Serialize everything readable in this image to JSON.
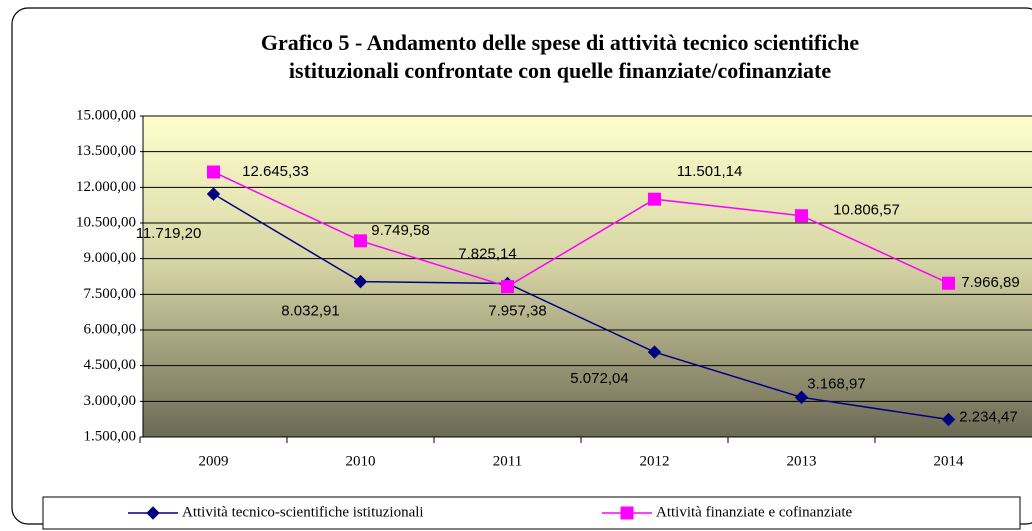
{
  "chart_data": {
    "type": "line",
    "title": "Grafico 5 - Andamento delle spese di attività tecnico scientifiche",
    "subtitle": "istituzionali confrontate con quelle finanziate/cofinanziate",
    "categories": [
      "2009",
      "2010",
      "2011",
      "2012",
      "2013",
      "2014"
    ],
    "series": [
      {
        "name": "Attività tecnico-scientifiche  istituzionali",
        "color": "#000080",
        "marker": "diamond",
        "values": [
          11719.2,
          8032.91,
          7957.38,
          5072.04,
          3168.97,
          2234.47
        ],
        "value_labels": [
          "11.719,20",
          "8.032,91",
          "7.957,38",
          "5.072,04",
          "3.168,97",
          "2.234,47"
        ]
      },
      {
        "name": "Attività finanziate e cofinanziate",
        "color": "#ff00ff",
        "marker": "square",
        "values": [
          12645.33,
          9749.58,
          7825.14,
          11501.14,
          10806.57,
          7966.89
        ],
        "value_labels": [
          "12.645,33",
          "9.749,58",
          "7.825,14",
          "11.501,14",
          "10.806,57",
          "7.966,89"
        ]
      }
    ],
    "ylim": [
      1500,
      15000
    ],
    "yticks": [
      {
        "value": 1500,
        "label": "1.500,00"
      },
      {
        "value": 3000,
        "label": "3.000,00"
      },
      {
        "value": 4500,
        "label": "4.500,00"
      },
      {
        "value": 6000,
        "label": "6.000,00"
      },
      {
        "value": 7500,
        "label": "7.500,00"
      },
      {
        "value": 9000,
        "label": "9.000,00"
      },
      {
        "value": 10500,
        "label": "10.500,00"
      },
      {
        "value": 12000,
        "label": "12.000,00"
      },
      {
        "value": 13500,
        "label": "13.500,00"
      },
      {
        "value": 15000,
        "label": "15.000,00"
      }
    ],
    "grid": true,
    "legend": "bottom"
  }
}
